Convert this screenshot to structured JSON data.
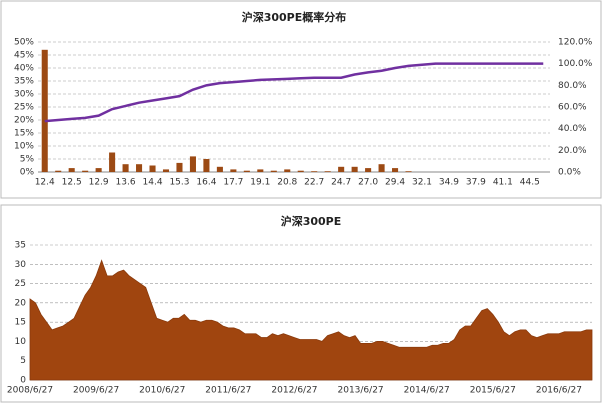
{
  "chart_data": [
    {
      "type": "bar",
      "title": "沪深300PE概率分布",
      "categories": [
        "12.4",
        null,
        "12.5",
        null,
        "12.9",
        null,
        "13.6",
        null,
        "14.4",
        null,
        "15.3",
        null,
        "16.4",
        null,
        "17.7",
        null,
        "19.1",
        null,
        "20.8",
        null,
        "22.7",
        null,
        "24.7",
        null,
        "27.0",
        null,
        "29.4",
        null,
        "32.1",
        null,
        "34.9",
        null,
        "37.9",
        null,
        "41.1",
        null,
        "44.5",
        null
      ],
      "series": [
        {
          "color": "#9c4a14",
          "values": [
            47,
            0.5,
            1.5,
            0.5,
            1.5,
            7.5,
            3,
            3,
            2.5,
            1,
            3.5,
            6,
            5,
            2,
            1,
            0.5,
            1,
            0.5,
            1,
            0.5,
            0.3,
            0.3,
            2,
            2,
            1.5,
            3,
            1.5,
            0.3,
            0,
            0,
            0,
            0,
            0,
            0,
            0,
            0,
            0,
            0
          ]
        },
        {
          "type": "line",
          "axis": "y2",
          "color": "#7030a0",
          "values": [
            47,
            48,
            49,
            50,
            52,
            58,
            61,
            64,
            66,
            68,
            70,
            76,
            80,
            82,
            83,
            84,
            85,
            85.5,
            86,
            86.5,
            87,
            87,
            87,
            90,
            92,
            93.5,
            96,
            98,
            99,
            100,
            100,
            100,
            100,
            100,
            100,
            100,
            100,
            100
          ]
        }
      ],
      "ylim": [
        0,
        50
      ],
      "yticks": [
        {
          "value": 0,
          "label": "0%"
        },
        {
          "value": 5,
          "label": "5%"
        },
        {
          "value": 10,
          "label": "10%"
        },
        {
          "value": 15,
          "label": "15%"
        },
        {
          "value": 20,
          "label": "20%"
        },
        {
          "value": 25,
          "label": "25%"
        },
        {
          "value": 30,
          "label": "30%"
        },
        {
          "value": 35,
          "label": "35%"
        },
        {
          "value": 40,
          "label": "40%"
        },
        {
          "value": 45,
          "label": "45%"
        },
        {
          "value": 50,
          "label": "50%"
        }
      ],
      "y2lim": [
        0,
        120
      ],
      "y2ticks": [
        {
          "value": 0,
          "label": "0.0%"
        },
        {
          "value": 20,
          "label": "20.0%"
        },
        {
          "value": 40,
          "label": "40.0%"
        },
        {
          "value": 60,
          "label": "60.0%"
        },
        {
          "value": 80,
          "label": "80.0%"
        },
        {
          "value": 100,
          "label": "100.0%"
        },
        {
          "value": 120,
          "label": "120.0%"
        }
      ],
      "grid": true
    },
    {
      "type": "area",
      "title": "沪深300PE",
      "categories": [
        "2008/6/27",
        null,
        null,
        null,
        null,
        null,
        null,
        null,
        null,
        null,
        null,
        null,
        "2009/6/27",
        null,
        null,
        null,
        null,
        null,
        null,
        null,
        null,
        null,
        null,
        null,
        "2010/6/27",
        null,
        null,
        null,
        null,
        null,
        null,
        null,
        null,
        null,
        null,
        null,
        "2011/6/27",
        null,
        null,
        null,
        null,
        null,
        null,
        null,
        null,
        null,
        null,
        null,
        "2012/6/27",
        null,
        null,
        null,
        null,
        null,
        null,
        null,
        null,
        null,
        null,
        null,
        "2013/6/27",
        null,
        null,
        null,
        null,
        null,
        null,
        null,
        null,
        null,
        null,
        null,
        "2014/6/27",
        null,
        null,
        null,
        null,
        null,
        null,
        null,
        null,
        null,
        null,
        null,
        "2015/6/27",
        null,
        null,
        null,
        null,
        null,
        null,
        null,
        null,
        null,
        null,
        null,
        "2016/6/27",
        null,
        null,
        null,
        null,
        null,
        null
      ],
      "values": [
        21,
        20,
        17,
        15,
        13,
        13.5,
        14,
        15,
        16,
        19,
        22,
        24,
        27,
        31,
        27,
        27,
        28,
        28.5,
        27,
        26,
        25,
        24,
        20,
        16,
        15.5,
        15,
        16,
        16,
        17,
        15.5,
        15.5,
        15,
        15.5,
        15.5,
        15,
        14,
        13.5,
        13.5,
        13,
        12,
        12,
        12,
        11,
        11,
        12,
        11.5,
        12,
        11.5,
        11,
        10.5,
        10.5,
        10.5,
        10.5,
        10,
        11.5,
        12,
        12.5,
        11.5,
        11,
        11.5,
        9.5,
        9.5,
        9.5,
        10,
        10,
        9.5,
        9,
        8.5,
        8.5,
        8.5,
        8.5,
        8.5,
        8.5,
        9,
        9,
        9.5,
        9.5,
        10.5,
        13,
        14,
        14,
        16,
        18,
        18.5,
        17,
        15,
        12.5,
        11.5,
        12.5,
        13,
        13,
        11.5,
        11,
        11.5,
        12,
        12,
        12,
        12.5,
        12.5,
        12.5,
        12.5,
        13,
        13
      ],
      "color": "#a0450f",
      "ylim": [
        0,
        35
      ],
      "yticks": [
        0,
        5,
        10,
        15,
        20,
        25,
        30,
        35
      ],
      "grid": true
    }
  ]
}
